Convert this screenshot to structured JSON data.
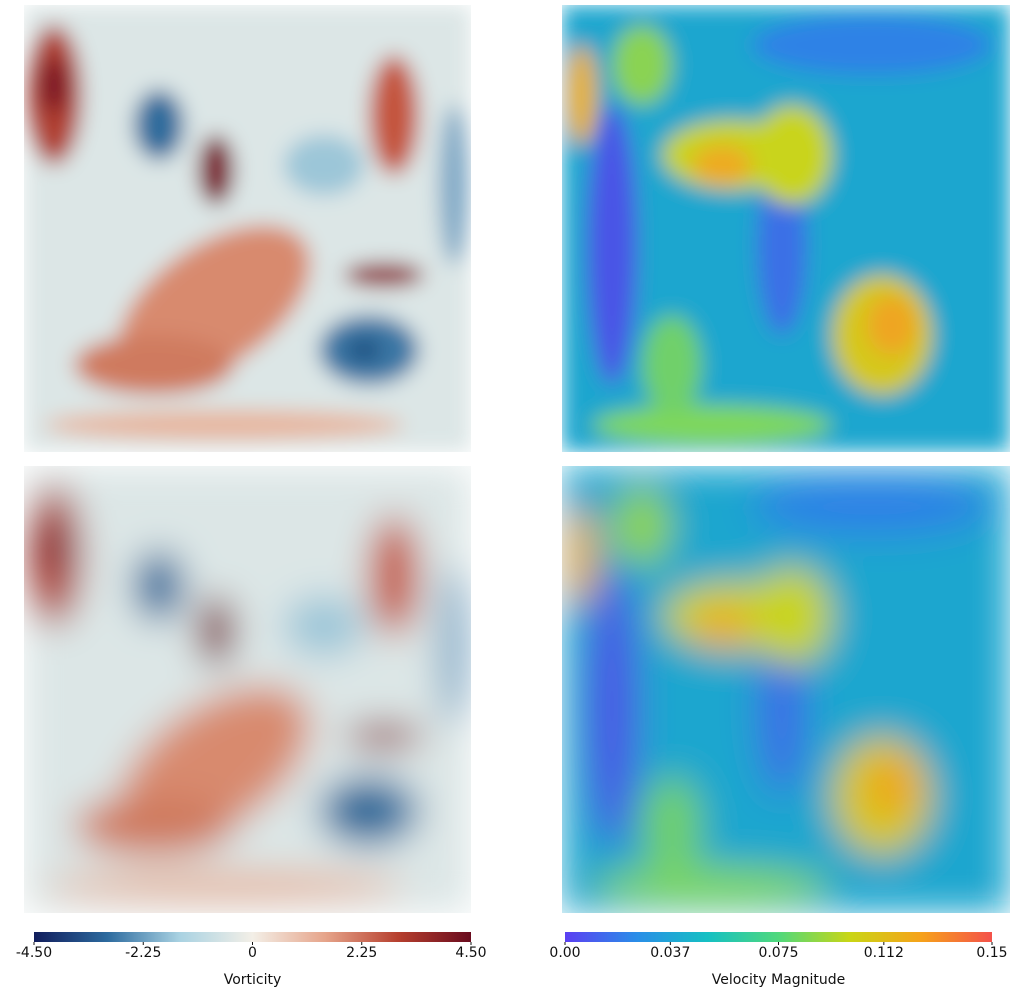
{
  "colorbars": [
    {
      "label": "Vorticity",
      "range": [
        -4.5,
        4.5
      ],
      "ticks": [
        {
          "value": -4.5,
          "label": "-4.50"
        },
        -2.25,
        0,
        2.25,
        {
          "value": 4.5,
          "label": "4.50"
        }
      ],
      "colors": [
        "#111d5c",
        "#2c6a9e",
        "#a9d2e2",
        "#f3efe7",
        "#e6a48a",
        "#b63f2e",
        "#690b1e"
      ]
    },
    {
      "label": "Velocity Magnitude",
      "range": [
        0,
        0.15
      ],
      "ticks": [
        {
          "value": 0,
          "label": "0.00"
        },
        0.037,
        0.075,
        0.112,
        0.15
      ],
      "colors": [
        "#5b3ff2",
        "#2a8de8",
        "#15c0c3",
        "#50d87c",
        "#c9d615",
        "#f6a21a",
        "#f4514a"
      ]
    }
  ]
}
